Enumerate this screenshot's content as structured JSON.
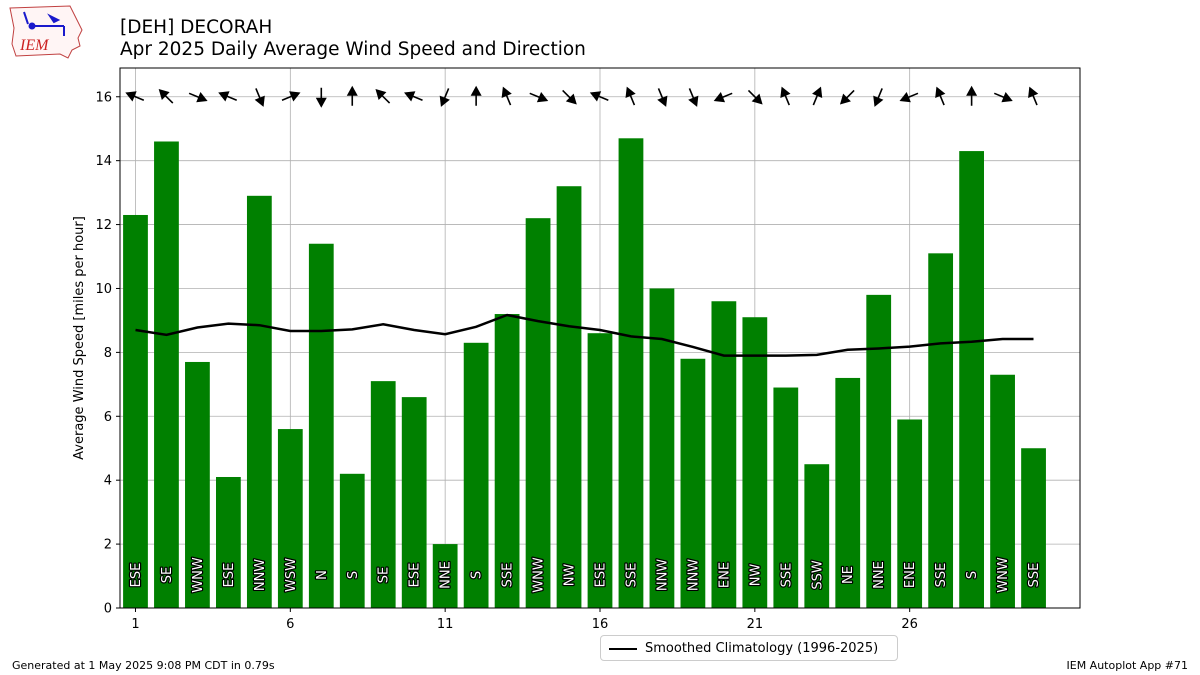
{
  "logo": {
    "text": "IEM"
  },
  "header": {
    "title_line1": "[DEH] DECORAH",
    "title_line2": "Apr 2025 Daily Average Wind Speed and Direction"
  },
  "footer": {
    "generated": "Generated at 1 May 2025 9:08 PM CDT in 0.79s",
    "app": "IEM Autoplot App #71"
  },
  "legend": {
    "climatology_label": "Smoothed Climatology (1996-2025)"
  },
  "colors": {
    "bar": "#008000",
    "line": "#000000",
    "grid": "#b0b0b0"
  },
  "chart_data": {
    "type": "bar",
    "title": "",
    "xlabel": "",
    "ylabel": "Average Wind Speed [miles per hour]",
    "xlim": [
      0.5,
      31.5
    ],
    "ylim": [
      0,
      16.9
    ],
    "x_ticks": [
      1,
      6,
      11,
      16,
      21,
      26
    ],
    "y_ticks": [
      0,
      2,
      4,
      6,
      8,
      10,
      12,
      14,
      16
    ],
    "grid": true,
    "legend_position": "bottom-right",
    "days": [
      1,
      2,
      3,
      4,
      5,
      6,
      7,
      8,
      9,
      10,
      11,
      12,
      13,
      14,
      15,
      16,
      17,
      18,
      19,
      20,
      21,
      22,
      23,
      24,
      25,
      26,
      27,
      28,
      29,
      30
    ],
    "speeds": [
      12.3,
      14.6,
      7.7,
      4.1,
      12.9,
      5.6,
      11.4,
      4.2,
      7.1,
      6.6,
      2.0,
      8.3,
      9.2,
      12.2,
      13.2,
      8.6,
      14.7,
      10.0,
      7.8,
      9.6,
      9.1,
      6.9,
      4.5,
      7.2,
      9.8,
      5.9,
      11.1,
      14.3,
      7.3,
      5.0
    ],
    "directions": [
      "ESE",
      "SE",
      "WNW",
      "ESE",
      "NNW",
      "WSW",
      "N",
      "S",
      "SE",
      "ESE",
      "NNE",
      "S",
      "SSE",
      "WNW",
      "NW",
      "ESE",
      "SSE",
      "NNW",
      "NNW",
      "ENE",
      "NW",
      "SSE",
      "SSW",
      "NE",
      "NNE",
      "ENE",
      "SSE",
      "S",
      "WNW",
      "SSE"
    ],
    "climatology": {
      "name": "Smoothed Climatology (1996-2025)",
      "values": [
        8.7,
        8.55,
        8.78,
        8.9,
        8.85,
        8.67,
        8.67,
        8.72,
        8.88,
        8.7,
        8.57,
        8.8,
        9.17,
        8.98,
        8.82,
        8.7,
        8.5,
        8.42,
        8.17,
        7.9,
        7.9,
        7.9,
        7.92,
        8.08,
        8.12,
        8.18,
        8.28,
        8.33,
        8.42,
        8.42
      ]
    }
  }
}
